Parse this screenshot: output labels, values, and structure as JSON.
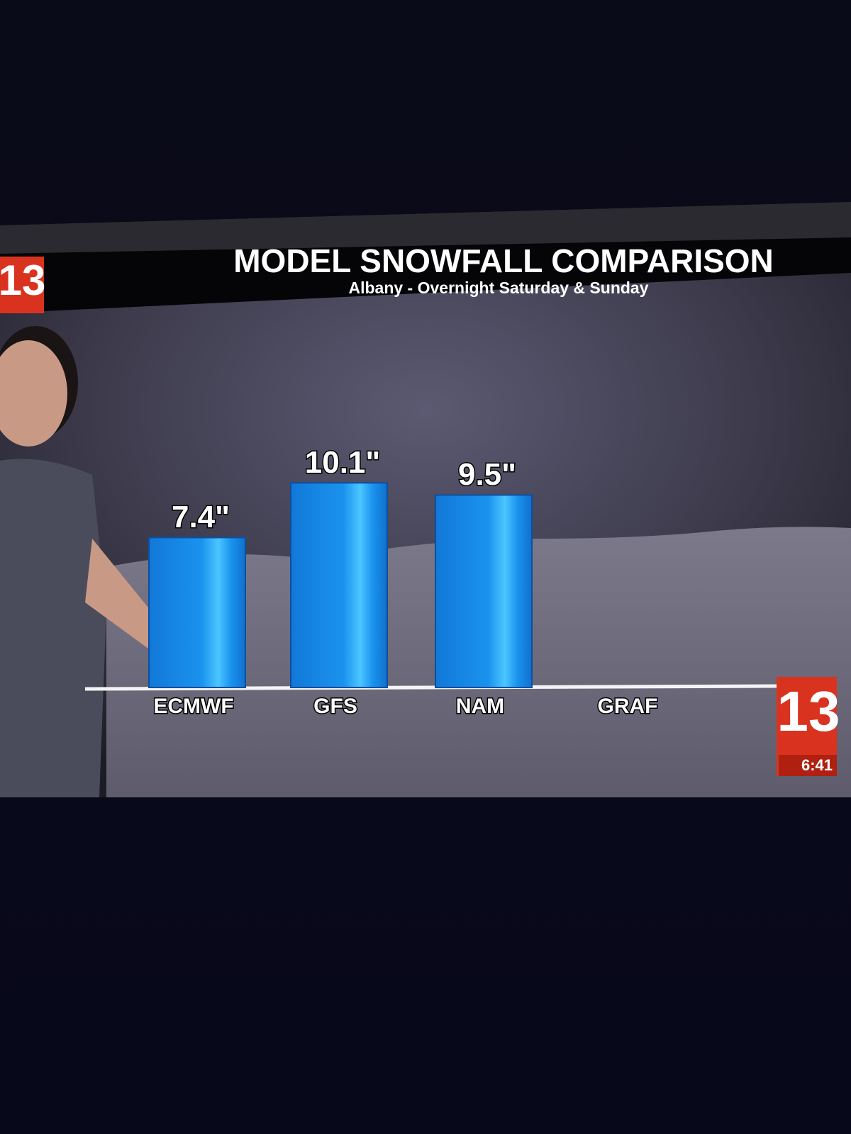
{
  "chart_data": {
    "type": "bar",
    "title": "MODEL SNOWFALL COMPARISON",
    "subtitle": "Albany - Overnight Saturday & Sunday",
    "categories": [
      "ECMWF",
      "GFS",
      "NAM",
      "GRAF"
    ],
    "values": [
      7.4,
      10.1,
      9.5,
      null
    ],
    "value_labels": [
      "7.4\"",
      "10.1\"",
      "9.5\"",
      null
    ],
    "color": "#1a8ef0",
    "ylim": [
      0,
      12
    ]
  },
  "station_logo": "13",
  "clock": "6:41"
}
